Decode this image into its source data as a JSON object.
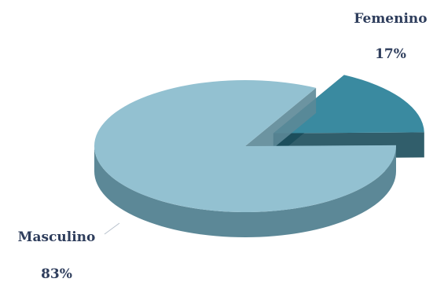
{
  "chart_data": {
    "type": "pie",
    "style": "3d-exploded",
    "slices": [
      {
        "label": "Masculino",
        "percent_label": "83%",
        "value": 83,
        "color": "#93c1d1",
        "side_color": "#5c8897",
        "exploded": false
      },
      {
        "label": "Femenino",
        "percent_label": "17%",
        "value": 17,
        "color": "#3a8aa0",
        "side_color": "#1b4c5b",
        "exploded": true
      }
    ]
  }
}
